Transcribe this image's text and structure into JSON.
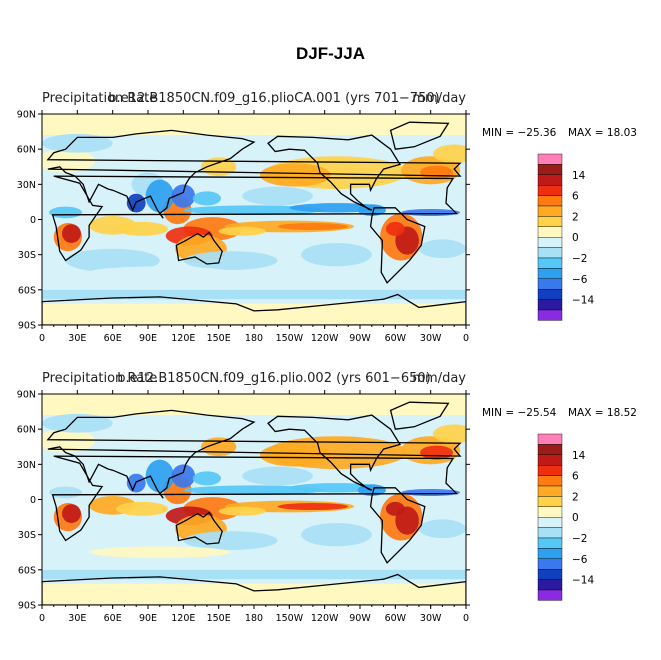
{
  "title": "DJF-JJA",
  "colors": {
    "land_outline": "#000000",
    "levels_low_to_high": [
      "#8a2be2",
      "#2a1aa0",
      "#1040c0",
      "#3a78ee",
      "#2ea0f0",
      "#55c8f5",
      "#a8e0f5",
      "#d8f2fa",
      "#fff8c0",
      "#ffd24a",
      "#ffaa22",
      "#ff7a10",
      "#ee3010",
      "#c01a18",
      "#9c1c18",
      "#ff7fb8"
    ]
  },
  "axes": {
    "lat_ticks": [
      "90N",
      "60N",
      "30N",
      "0",
      "30S",
      "60S",
      "90S"
    ],
    "lon_ticks": [
      "0",
      "30E",
      "60E",
      "90E",
      "120E",
      "150E",
      "180",
      "150W",
      "120W",
      "90W",
      "60W",
      "30W",
      "0"
    ]
  },
  "colorbar_labels": [
    "14",
    "6",
    "2",
    "0",
    "−2",
    "−6",
    "−14"
  ],
  "panels": [
    {
      "overlapping_titles": [
        "Precipitation Rate",
        "b.e12.B1850CN.f09_g16.plioCA.001 (yrs 701−750)",
        "mm/day"
      ],
      "min_label": "MIN = −25.36",
      "max_label": "MAX =  18.03"
    },
    {
      "overlapping_titles": [
        "Precipitation Rate",
        "b.e12.B1850CN.f09_g16.plio.002 (yrs 601−650)",
        "mm/day"
      ],
      "min_label": "MIN = −25.54",
      "max_label": "MAX =  18.52"
    }
  ]
}
